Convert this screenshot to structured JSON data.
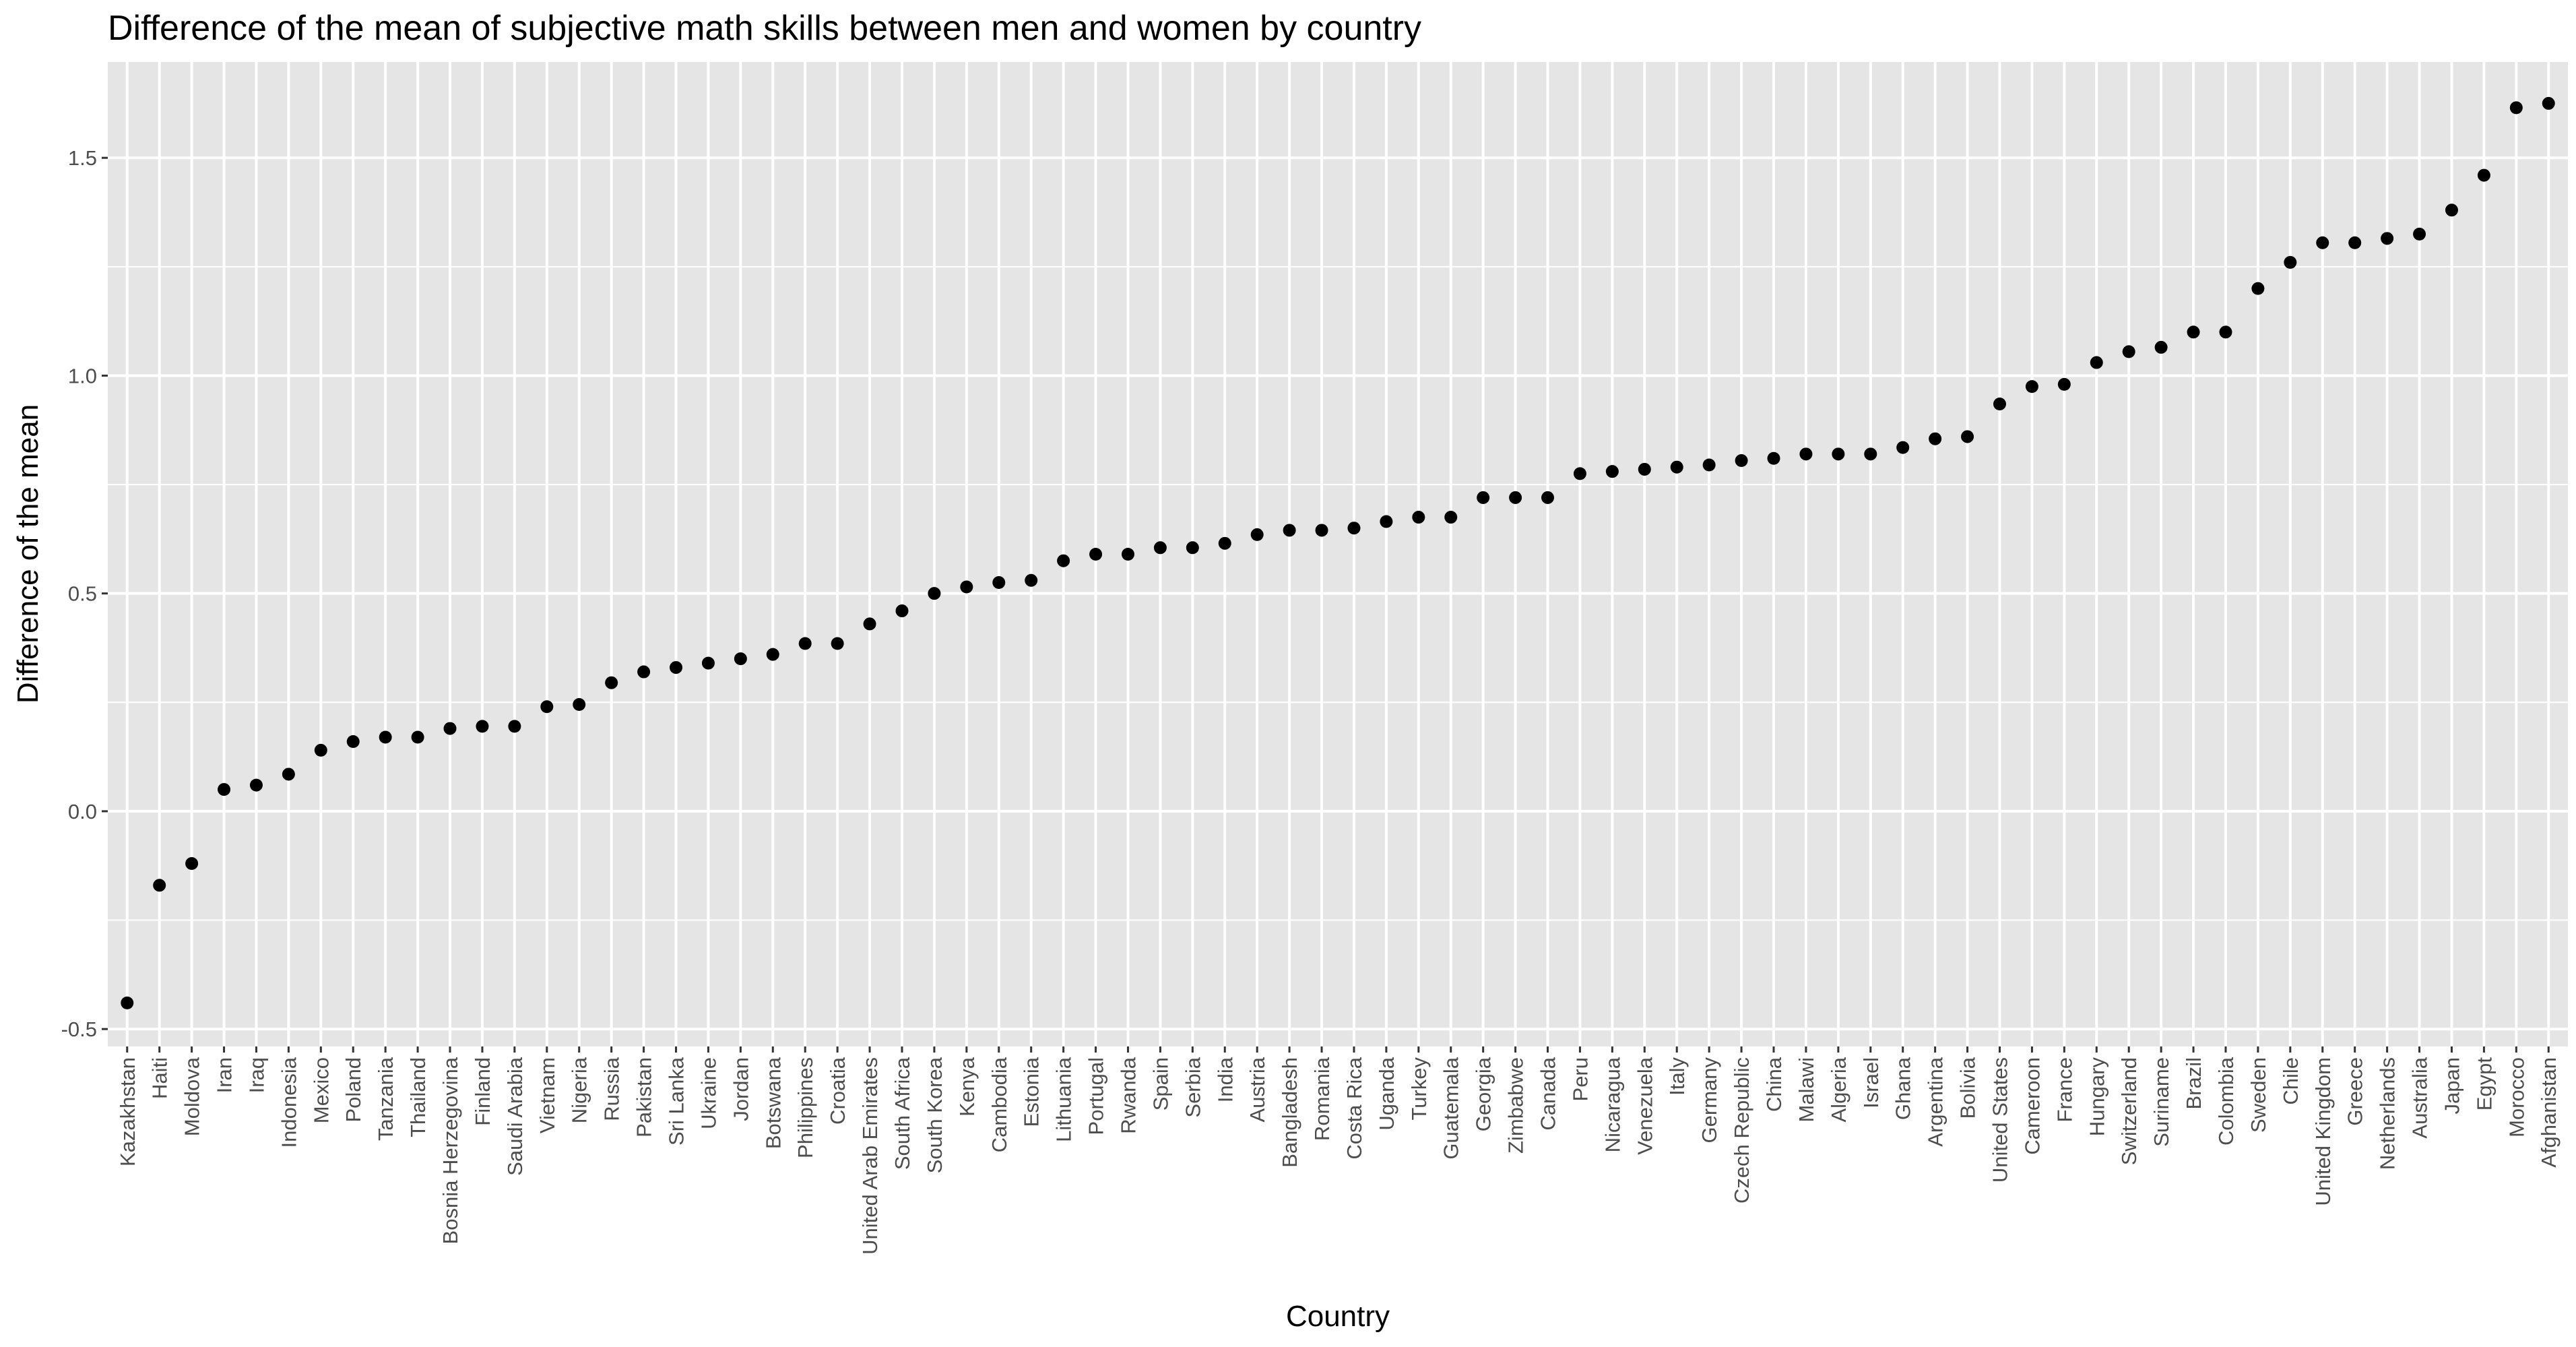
{
  "chart_data": {
    "type": "scatter",
    "title": "Difference of the mean of subjective math skills between men and women by country",
    "xlabel": "Country",
    "ylabel": "Difference of the mean",
    "ylim": [
      -0.54,
      1.72
    ],
    "yticks": [
      -0.5,
      0.0,
      0.5,
      1.0,
      1.5
    ],
    "ytick_labels": [
      "-0.5",
      "0.0",
      "0.5",
      "1.0",
      "1.5"
    ],
    "grid": true,
    "colors": {
      "panel": "#e5e5e5",
      "grid": "#ffffff",
      "point": "#000000",
      "tick": "#4d4d4d"
    },
    "categories": [
      "Kazakhstan",
      "Haiti",
      "Moldova",
      "Iran",
      "Iraq",
      "Indonesia",
      "Mexico",
      "Poland",
      "Tanzania",
      "Thailand",
      "Bosnia Herzegovina",
      "Finland",
      "Saudi Arabia",
      "Vietnam",
      "Nigeria",
      "Russia",
      "Pakistan",
      "Sri Lanka",
      "Ukraine",
      "Jordan",
      "Botswana",
      "Philippines",
      "Croatia",
      "United Arab Emirates",
      "South Africa",
      "South Korea",
      "Kenya",
      "Cambodia",
      "Estonia",
      "Lithuania",
      "Portugal",
      "Rwanda",
      "Spain",
      "Serbia",
      "India",
      "Austria",
      "Bangladesh",
      "Romania",
      "Costa Rica",
      "Uganda",
      "Turkey",
      "Guatemala",
      "Georgia",
      "Zimbabwe",
      "Canada",
      "Peru",
      "Nicaragua",
      "Venezuela",
      "Italy",
      "Germany",
      "Czech Republic",
      "China",
      "Malawi",
      "Algeria",
      "Israel",
      "Ghana",
      "Argentina",
      "Bolivia",
      "United States",
      "Cameroon",
      "France",
      "Hungary",
      "Switzerland",
      "Suriname",
      "Brazil",
      "Colombia",
      "Sweden",
      "Chile",
      "United Kingdom",
      "Greece",
      "Netherlands",
      "Australia",
      "Japan",
      "Egypt",
      "Morocco",
      "Afghanistan"
    ],
    "values": [
      -0.44,
      -0.17,
      -0.12,
      0.05,
      0.06,
      0.085,
      0.14,
      0.16,
      0.17,
      0.17,
      0.19,
      0.195,
      0.195,
      0.24,
      0.245,
      0.295,
      0.32,
      0.33,
      0.34,
      0.35,
      0.36,
      0.385,
      0.385,
      0.43,
      0.46,
      0.5,
      0.515,
      0.525,
      0.53,
      0.575,
      0.59,
      0.59,
      0.605,
      0.605,
      0.615,
      0.635,
      0.645,
      0.645,
      0.65,
      0.665,
      0.675,
      0.675,
      0.72,
      0.72,
      0.72,
      0.775,
      0.78,
      0.785,
      0.79,
      0.795,
      0.805,
      0.81,
      0.82,
      0.82,
      0.82,
      0.835,
      0.855,
      0.86,
      0.935,
      0.975,
      0.98,
      1.03,
      1.055,
      1.065,
      1.1,
      1.1,
      1.2,
      1.26,
      1.305,
      1.305,
      1.315,
      1.325,
      1.38,
      1.46,
      1.615,
      1.625
    ]
  }
}
